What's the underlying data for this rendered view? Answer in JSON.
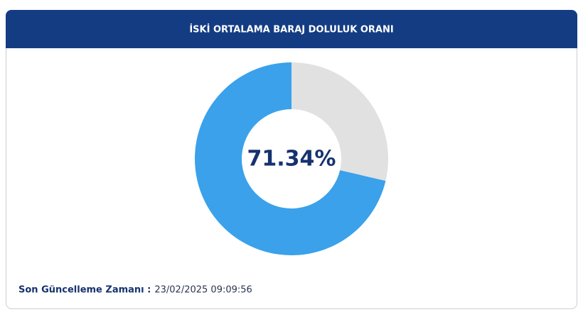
{
  "chart_data": {
    "type": "donut",
    "title": "İSKİ ORTALAMA BARAJ DOLULUK ORANI",
    "values": [
      71.34,
      28.66
    ],
    "value_labels": [
      "71.34%",
      null
    ],
    "colors": [
      "#3aa1ea",
      "#e1e1e1"
    ]
  },
  "footer": {
    "label": "Son Güncelleme Zamanı :",
    "timestamp": "23/02/2025 09:09:56"
  }
}
